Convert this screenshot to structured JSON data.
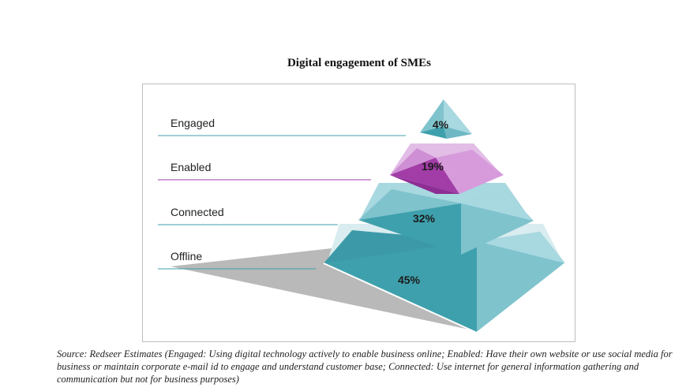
{
  "title": "Digital engagement of SMEs",
  "tiers": [
    {
      "label": "Engaged",
      "value": "4%"
    },
    {
      "label": "Enabled",
      "value": "19%"
    },
    {
      "label": "Connected",
      "value": "32%"
    },
    {
      "label": "Offline",
      "value": "45%"
    }
  ],
  "colors": {
    "teal_front": "#3fa0ad",
    "teal_light": "#a8d8e0",
    "purple_front": "#a23da8",
    "purple_light": "#e2bde6",
    "shadow": "#b9b9b9"
  },
  "source": "Source: Redseer Estimates (Engaged: Using digital technology actively to enable business online; Enabled: Have their own website or use social media for business or maintain corporate e-mail id to engage and understand customer base; Connected: Use internet for general information gathering and communication but not for business purposes)"
}
